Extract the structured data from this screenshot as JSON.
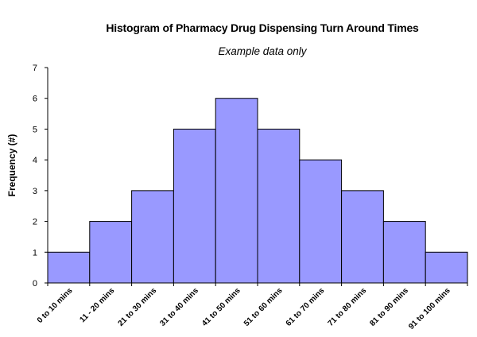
{
  "chart_data": {
    "type": "bar",
    "title": "Histogram of Pharmacy Drug Dispensing Turn Around Times",
    "subtitle": "Example data only",
    "xlabel": "",
    "ylabel": "Frequency (#)",
    "categories": [
      "0 to 10 mins",
      "11 - 20 mins",
      "21 to 30 mins",
      "31 to 40 mins",
      "41 to 50 mins",
      "51 to 60 mins",
      "61 to 70 mins",
      "71 to 80 mins",
      "81 to 90 mins",
      "91 to 100 mins"
    ],
    "values": [
      1,
      2,
      3,
      5,
      6,
      5,
      4,
      3,
      2,
      1
    ],
    "ylim": [
      0,
      7
    ],
    "yticks": [
      0,
      1,
      2,
      3,
      4,
      5,
      6,
      7
    ],
    "grid": false,
    "legend": "none",
    "bar_color": "#9999ff",
    "bar_edge_color": "#000000"
  }
}
